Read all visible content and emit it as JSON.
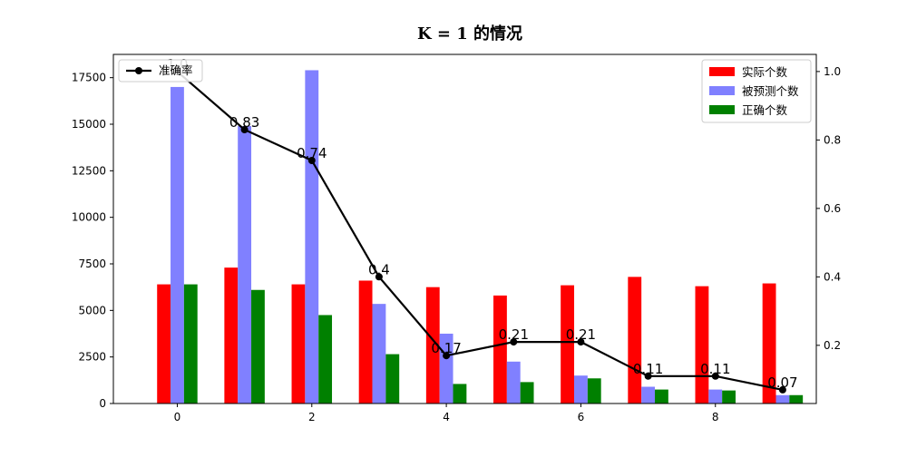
{
  "chart_data": {
    "type": "bar",
    "title": "K = 1 的情况",
    "x": [
      0,
      1,
      2,
      3,
      4,
      5,
      6,
      7,
      8,
      9
    ],
    "x_ticks": [
      0,
      2,
      4,
      6,
      8
    ],
    "xlim": [
      -0.95,
      9.5
    ],
    "ylim_left": [
      0,
      18750
    ],
    "y_ticks_left": [
      0,
      2500,
      5000,
      7500,
      10000,
      12500,
      15000,
      17500
    ],
    "ylim_right": [
      0.03,
      1.05
    ],
    "y_ticks_right": [
      0.2,
      0.4,
      0.6,
      0.8,
      1.0
    ],
    "series": [
      {
        "name": "实际个数",
        "axis": "left",
        "color": "#ff0000",
        "values": [
          6400,
          7300,
          6400,
          6600,
          6250,
          5800,
          6350,
          6800,
          6300,
          6450
        ]
      },
      {
        "name": "被预测个数",
        "axis": "left",
        "color": "#8080ff",
        "values": [
          17000,
          14900,
          17900,
          5350,
          3750,
          2250,
          1500,
          900,
          750,
          450
        ]
      },
      {
        "name": "正确个数",
        "axis": "left",
        "color": "#008000",
        "values": [
          6400,
          6100,
          4750,
          2650,
          1050,
          1150,
          1350,
          750,
          700,
          450
        ]
      }
    ],
    "line": {
      "name": "准确率",
      "axis": "right",
      "color": "#000000",
      "values": [
        1.0,
        0.83,
        0.74,
        0.4,
        0.17,
        0.21,
        0.21,
        0.11,
        0.11,
        0.07
      ],
      "labels": [
        "1.0",
        "0.83",
        "0.74",
        "0.4",
        "0.17",
        "0.21",
        "0.21",
        "0.11",
        "0.11",
        "0.07"
      ]
    },
    "legend_bars_position": "top-right",
    "legend_line_position": "top-left",
    "grid": false
  }
}
